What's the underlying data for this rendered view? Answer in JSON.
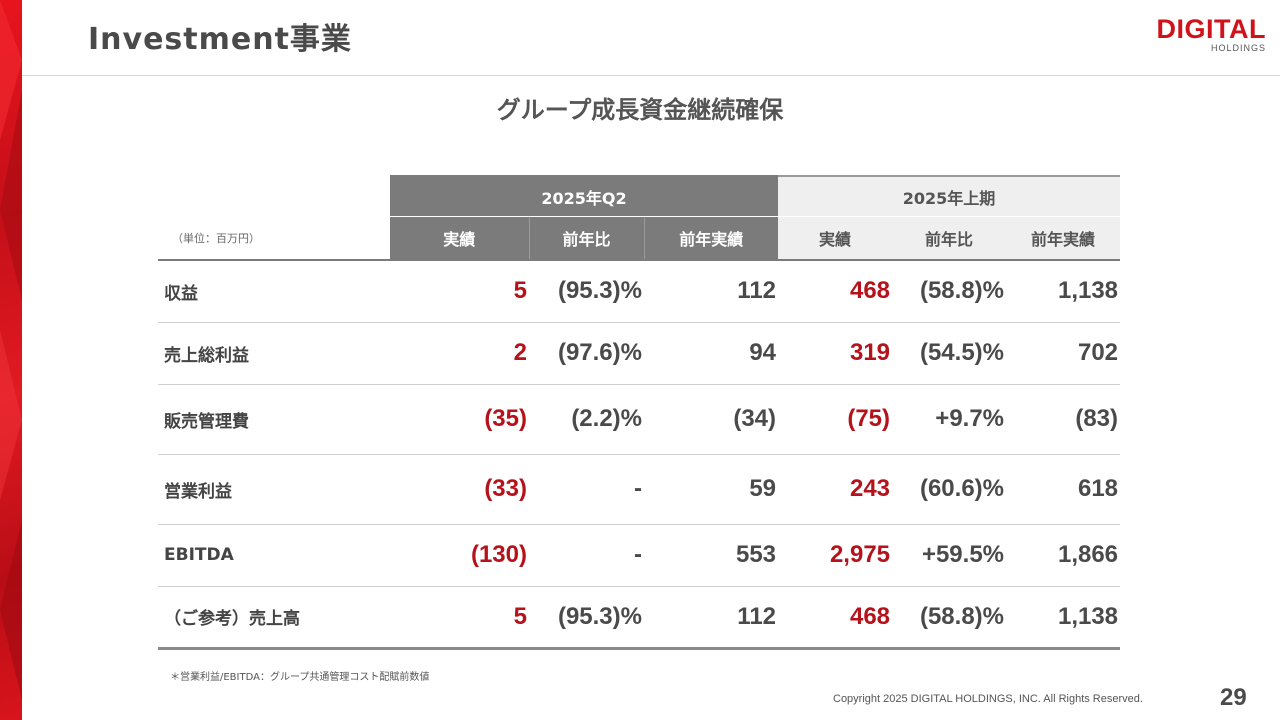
{
  "header": {
    "title": "Investment事業",
    "logo_main": "DIGITAL",
    "logo_sub": "HOLDINGS"
  },
  "slide": {
    "heading": "グループ成長資金継続確保"
  },
  "table": {
    "unit": "（単位：百万円）",
    "groups": [
      "2025年Q2",
      "2025年上期"
    ],
    "columns": [
      "実績",
      "前年比",
      "前年実績",
      "実績",
      "前年比",
      "前年実績"
    ],
    "rows": [
      {
        "label": "収益",
        "values": [
          "5",
          "(95.3)%",
          "112",
          "468",
          "(58.8)%",
          "1,138"
        ]
      },
      {
        "label": "売上総利益",
        "values": [
          "2",
          "(97.6)%",
          "94",
          "319",
          "(54.5)%",
          "702"
        ]
      },
      {
        "label": "販売管理費",
        "values": [
          "(35)",
          "(2.2)%",
          "(34)",
          "(75)",
          "+9.7%",
          "(83)"
        ]
      },
      {
        "label": "営業利益",
        "values": [
          "(33)",
          "-",
          "59",
          "243",
          "(60.6)%",
          "618"
        ]
      },
      {
        "label": "EBITDA",
        "values": [
          "(130)",
          "-",
          "553",
          "2,975",
          "+59.5%",
          "1,866"
        ]
      },
      {
        "label": "（ご参考）売上高",
        "values": [
          "5",
          "(95.3)%",
          "112",
          "468",
          "(58.8)%",
          "1,138"
        ]
      }
    ],
    "highlight_color": "#b5121b"
  },
  "footer": {
    "note": "＊営業利益/EBITDA：グループ共通管理コスト配賦前数値",
    "copyright": "Copyright 2025 DIGITAL HOLDINGS, INC. All Rights Reserved.",
    "page_number": "29"
  }
}
